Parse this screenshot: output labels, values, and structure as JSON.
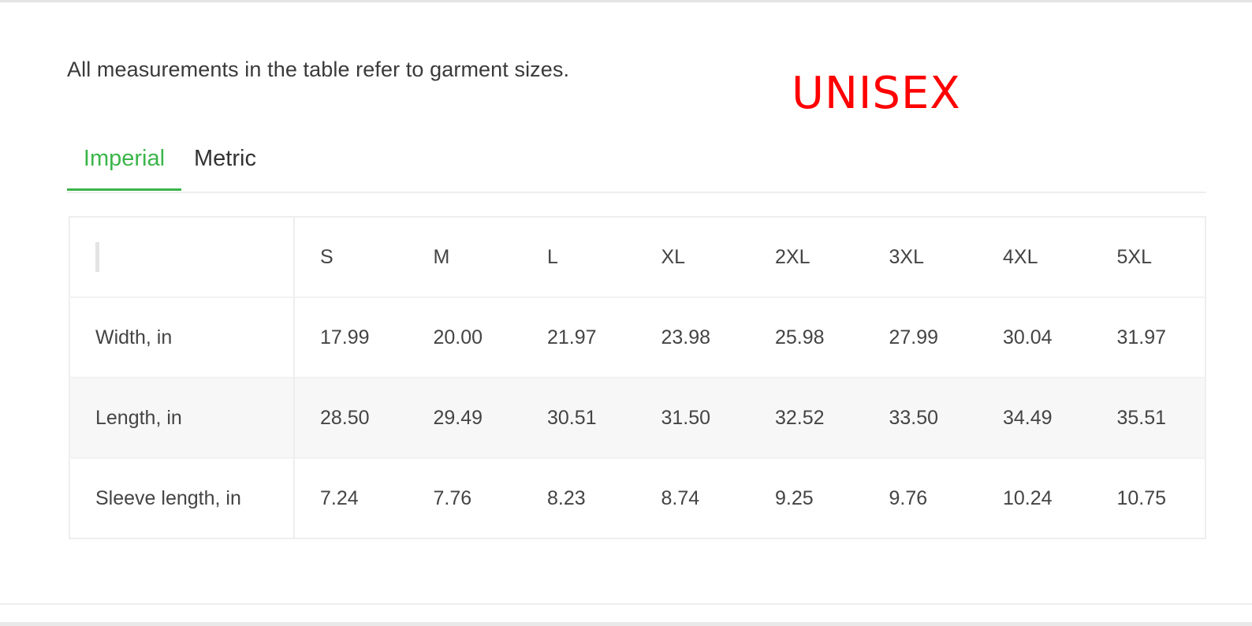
{
  "intro_text": "All measurements in the table refer to garment sizes.",
  "badge_text": "UNISEX",
  "colors": {
    "accent_green": "#3bb54a",
    "badge_red": "#ff0000"
  },
  "tabs": [
    {
      "label": "Imperial",
      "active": true
    },
    {
      "label": "Metric",
      "active": false
    }
  ],
  "table": {
    "sizes": [
      "S",
      "M",
      "L",
      "XL",
      "2XL",
      "3XL",
      "4XL",
      "5XL"
    ],
    "rows": [
      {
        "label": "Width, in",
        "values": [
          "17.99",
          "20.00",
          "21.97",
          "23.98",
          "25.98",
          "27.99",
          "30.04",
          "31.97"
        ]
      },
      {
        "label": "Length, in",
        "values": [
          "28.50",
          "29.49",
          "30.51",
          "31.50",
          "32.52",
          "33.50",
          "34.49",
          "35.51"
        ]
      },
      {
        "label": "Sleeve length, in",
        "values": [
          "7.24",
          "7.76",
          "8.23",
          "8.74",
          "9.25",
          "9.76",
          "10.24",
          "10.75"
        ]
      }
    ]
  }
}
